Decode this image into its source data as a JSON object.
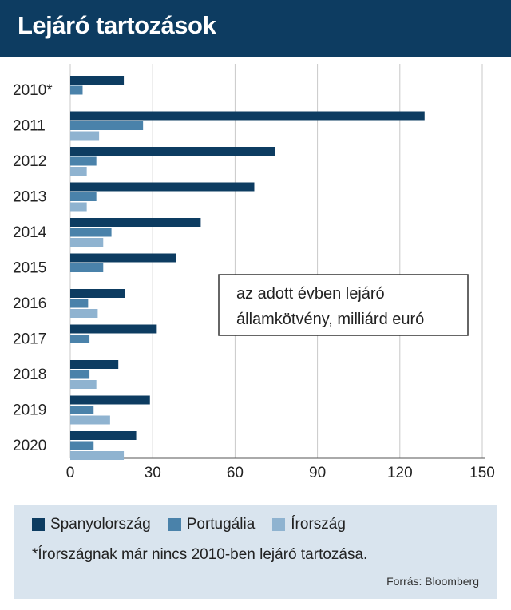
{
  "header": {
    "title": "Lejáró tartozások"
  },
  "colors": {
    "header_bg": "#0d3c61",
    "legend_bg": "#d9e4ee",
    "series": [
      "#0d3c61",
      "#4a82aa",
      "#8fb3d0"
    ]
  },
  "annotation": {
    "line1": "az adott évben lejáró",
    "line2": "államkötvény, milliárd euró"
  },
  "legend": {
    "note": "*Írországnak már nincs 2010-ben lejáró tartozása.",
    "source": "Forrás: Bloomberg"
  },
  "chart_data": {
    "type": "bar",
    "orientation": "horizontal",
    "categories": [
      "2010*",
      "2011",
      "2012",
      "2013",
      "2014",
      "2015",
      "2016",
      "2017",
      "2018",
      "2019",
      "2020"
    ],
    "series": [
      {
        "name": "Spanyolország",
        "values": [
          19.5,
          129,
          74.5,
          67,
          47.5,
          38.5,
          20,
          31.5,
          17.5,
          29,
          24
        ]
      },
      {
        "name": "Portugália",
        "values": [
          4.5,
          26.5,
          9.5,
          9.5,
          15,
          12,
          6.5,
          7,
          7,
          8.5,
          8.5
        ]
      },
      {
        "name": "Írország",
        "values": [
          0,
          10.5,
          6,
          6,
          12,
          0,
          10,
          0,
          9.5,
          14.5,
          19.5
        ]
      }
    ],
    "xlim": [
      0,
      150
    ],
    "xticks": [
      0,
      30,
      60,
      90,
      120,
      150
    ],
    "grid": true
  }
}
